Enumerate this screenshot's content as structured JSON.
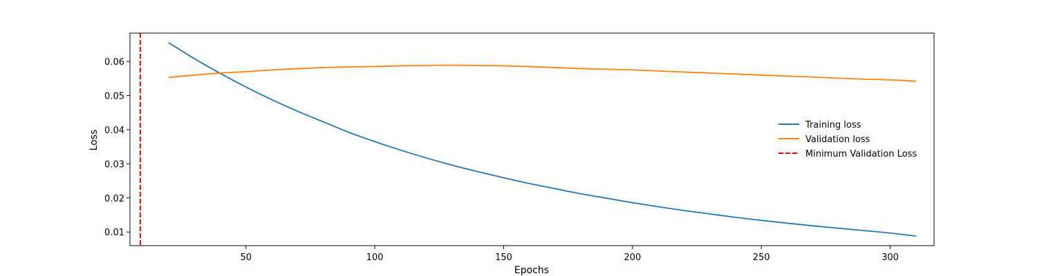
{
  "chart_data": {
    "type": "line",
    "xlabel": "Epochs",
    "ylabel": "Loss",
    "xlim": [
      5,
      317
    ],
    "ylim": [
      0.006,
      0.0683
    ],
    "x_ticks": [
      50,
      100,
      150,
      200,
      250,
      300
    ],
    "y_ticks": [
      0.01,
      0.02,
      0.03,
      0.04,
      0.05,
      0.06
    ],
    "x_tick_labels": [
      "50",
      "100",
      "150",
      "200",
      "250",
      "300"
    ],
    "y_tick_labels": [
      "0.01",
      "0.02",
      "0.03",
      "0.04",
      "0.05",
      "0.06"
    ],
    "legend_position": "center-right",
    "series": [
      {
        "name": "Training loss",
        "color": "#1f77b4",
        "style": "solid",
        "x": [
          20,
          30,
          40,
          50,
          60,
          70,
          80,
          90,
          100,
          110,
          120,
          130,
          140,
          150,
          160,
          170,
          180,
          190,
          200,
          210,
          220,
          230,
          240,
          250,
          260,
          270,
          280,
          290,
          300,
          310
        ],
        "y": [
          0.0655,
          0.0608,
          0.0565,
          0.0525,
          0.0488,
          0.0454,
          0.0423,
          0.0392,
          0.0365,
          0.034,
          0.0317,
          0.0296,
          0.0277,
          0.0259,
          0.0242,
          0.0227,
          0.0212,
          0.0199,
          0.0186,
          0.0174,
          0.0163,
          0.0153,
          0.0143,
          0.0134,
          0.0126,
          0.0118,
          0.0111,
          0.0104,
          0.0097,
          0.0088
        ]
      },
      {
        "name": "Validation loss",
        "color": "#ff7f0e",
        "style": "solid",
        "x": [
          20,
          30,
          40,
          50,
          60,
          70,
          80,
          90,
          100,
          110,
          120,
          130,
          140,
          150,
          160,
          170,
          180,
          190,
          200,
          210,
          220,
          230,
          240,
          250,
          260,
          270,
          280,
          290,
          300,
          310
        ],
        "y": [
          0.0553,
          0.056,
          0.0566,
          0.057,
          0.0575,
          0.0579,
          0.0582,
          0.0584,
          0.0585,
          0.0587,
          0.0588,
          0.0589,
          0.0588,
          0.0587,
          0.0585,
          0.0582,
          0.0579,
          0.0577,
          0.0575,
          0.0572,
          0.0569,
          0.0566,
          0.0563,
          0.056,
          0.0557,
          0.0554,
          0.0551,
          0.0548,
          0.0546,
          0.0542
        ]
      }
    ],
    "vlines": [
      {
        "name": "Minimum Validation Loss",
        "x": 9,
        "color": "#ff0000",
        "style": "dashed"
      }
    ]
  }
}
